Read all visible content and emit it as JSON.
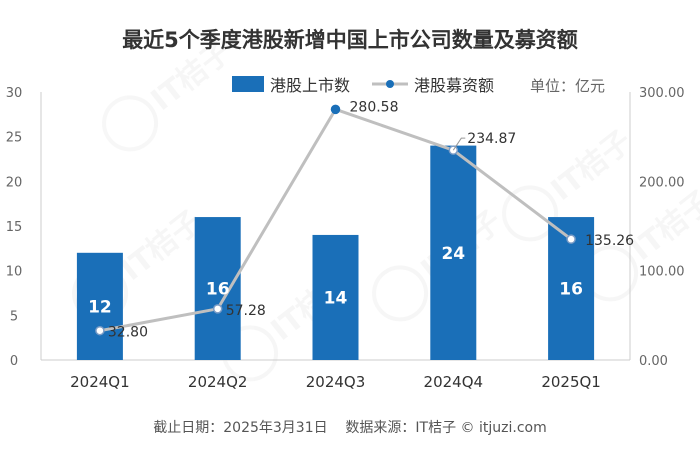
{
  "chart_data": {
    "type": "bar",
    "title": "最近5个季度港股新增中国上市公司数量及募资额",
    "unit_note": "单位：亿元",
    "footer": "截止日期：2025年3月31日    数据来源：IT桔子 © itjuzi.com",
    "categories": [
      "2024Q1",
      "2024Q2",
      "2024Q3",
      "2024Q4",
      "2025Q1"
    ],
    "series": [
      {
        "name": "港股上市数",
        "type": "bar",
        "axis": "left",
        "color": "#1a6fb8",
        "values": [
          12,
          16,
          14,
          24,
          16
        ],
        "labels": [
          "12",
          "16",
          "14",
          "24",
          "16"
        ]
      },
      {
        "name": "港股募资额",
        "type": "line",
        "axis": "right",
        "color": "#bfbfbf",
        "values": [
          32.8,
          57.28,
          280.58,
          234.87,
          135.26
        ],
        "labels": [
          "32.80",
          "57.28",
          "280.58",
          "234.87",
          "135.26"
        ]
      }
    ],
    "left_axis": {
      "ylim": [
        0,
        30
      ],
      "ticks": [
        "0",
        "5",
        "10",
        "15",
        "20",
        "25",
        "30"
      ]
    },
    "right_axis": {
      "ylim": [
        0,
        300
      ],
      "ticks": [
        "0.00",
        "100.00",
        "200.00",
        "300.00"
      ]
    },
    "legend_position": "top",
    "grid": false
  },
  "watermark_text": "IT桔子 ITJUZI.COM"
}
